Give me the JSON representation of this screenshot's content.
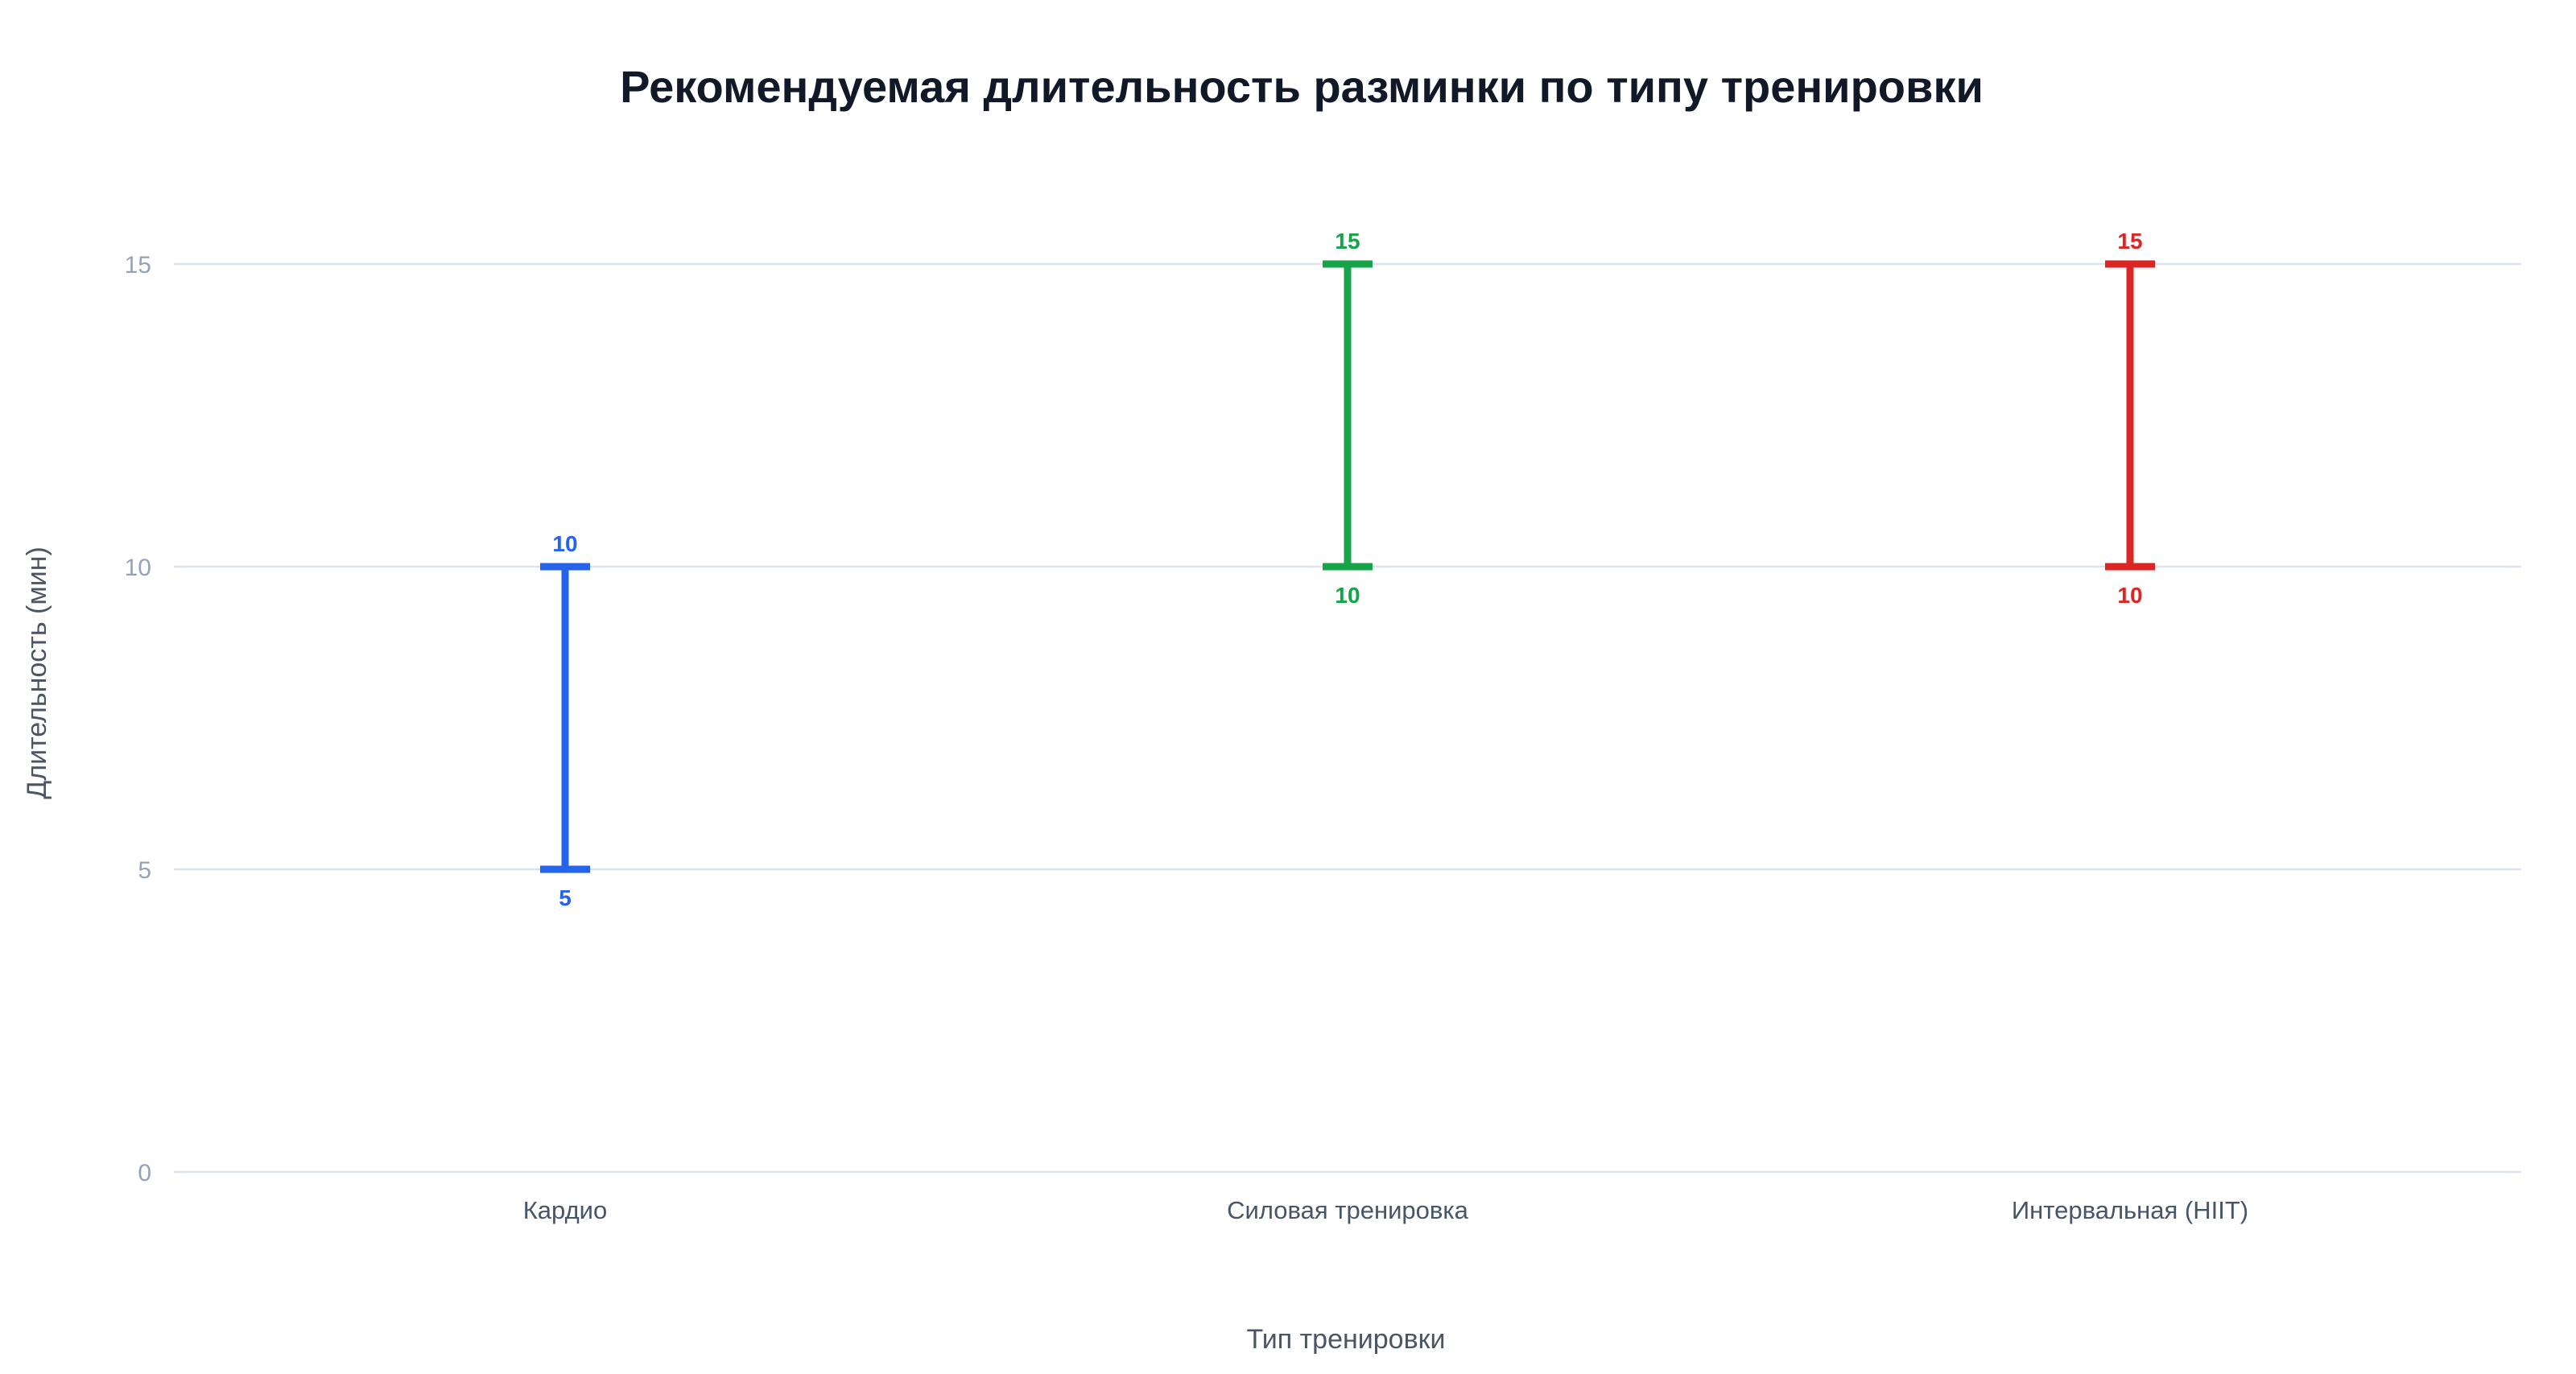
{
  "chart_data": {
    "type": "range",
    "title": "Рекомендуемая длительность разминки по типу тренировки",
    "xlabel": "Тип тренировки",
    "ylabel": "Длительность (мин)",
    "ylim": [
      0,
      16.2
    ],
    "yticks": [
      0,
      5,
      10,
      15
    ],
    "grid": true,
    "categories": [
      "Кардио",
      "Силовая тренировка",
      "Интервальная (HIIT)"
    ],
    "ranges": [
      {
        "category": "Кардио",
        "min": 5,
        "max": 10,
        "color": "#2563eb"
      },
      {
        "category": "Силовая тренировка",
        "min": 10,
        "max": 15,
        "color": "#16a34a"
      },
      {
        "category": "Интервальная (HIIT)",
        "min": 10,
        "max": 15,
        "color": "#dc2626"
      }
    ]
  }
}
